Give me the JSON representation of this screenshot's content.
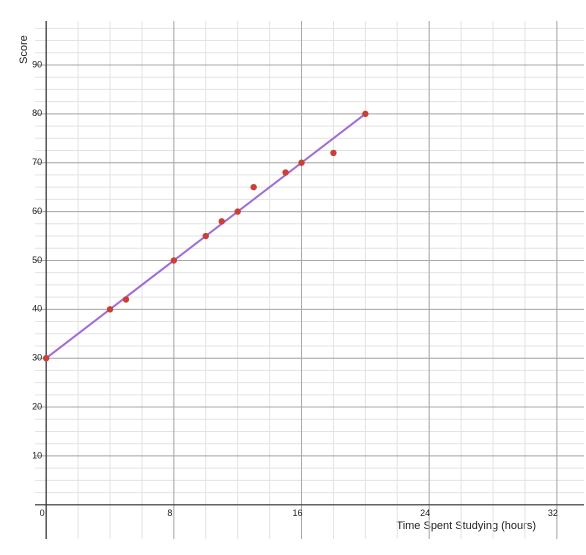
{
  "chart_data": {
    "type": "scatter",
    "x_label": "Time Spent Studying (hours)",
    "y_label": "Score",
    "x": [
      0,
      4,
      5,
      8,
      10,
      11,
      12,
      13,
      15,
      16,
      18,
      20
    ],
    "series": [
      {
        "color": "#c9403a",
        "values": [
          30,
          40,
          42,
          50,
          55,
          58,
          60,
          65,
          68,
          70,
          72,
          80
        ]
      }
    ],
    "trendline": {
      "color": "#a06cd5",
      "x": [
        0,
        20
      ],
      "values": [
        30,
        80
      ]
    },
    "xlim": [
      -0.7,
      33.7
    ],
    "ylim": [
      -7,
      99
    ],
    "xticks": [
      0,
      8,
      16,
      24,
      32
    ],
    "yticks": [
      10,
      20,
      30,
      40,
      50,
      60,
      70,
      80,
      90
    ],
    "grid": true
  }
}
